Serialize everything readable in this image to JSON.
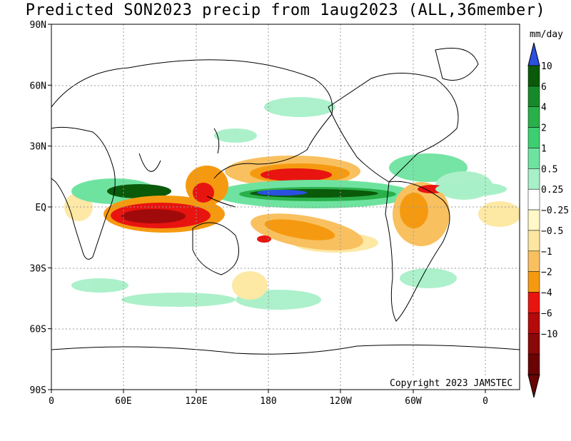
{
  "title": "Predicted SON2023 precip from 1aug2023 (ALL,36member)",
  "copyright": "Copyright 2023 JAMSTEC",
  "units": "mm/day",
  "lat_ticks": [
    "90N",
    "60N",
    "30N",
    "EQ",
    "30S",
    "60S",
    "90S"
  ],
  "lon_ticks": [
    "0",
    "60E",
    "120E",
    "180",
    "120W",
    "60W",
    "0"
  ],
  "colorbar": {
    "labels": [
      "10",
      "6",
      "4",
      "2",
      "1",
      "0.5",
      "0.25",
      "−0.25",
      "−0.5",
      "−1",
      "−2",
      "−4",
      "−6",
      "−10"
    ],
    "colors": [
      "#0a5a0a",
      "#168a2a",
      "#2ab04a",
      "#3ccf72",
      "#6ee3a0",
      "#a8f0c8",
      "#ffffff",
      "#fff8c8",
      "#fde7a0",
      "#f9c060",
      "#f59a10",
      "#e81410",
      "#b40a0a",
      "#8a0808",
      "#6a0404"
    ],
    "over_color": "#2a50e0",
    "under_color": "#6a0404"
  },
  "colors": {
    "wet_strong": "#0a5a0a",
    "wet_mid": "#2ab04a",
    "wet_light": "#6ee3a0",
    "wet_faint": "#a8f0c8",
    "dry_faint": "#fde7a0",
    "dry_light": "#f9c060",
    "dry_mid": "#f59a10",
    "dry_strong": "#e81410",
    "dry_extreme": "#a00a0a",
    "extreme_wet": "#2a50e0"
  }
}
